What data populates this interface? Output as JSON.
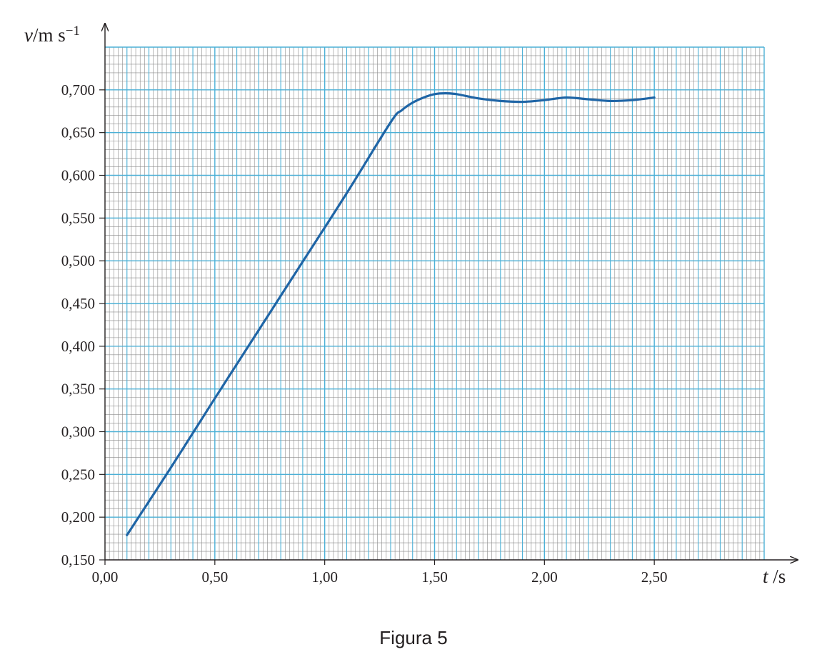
{
  "caption": "Figura 5",
  "chart_data": {
    "type": "line",
    "title": "",
    "xlabel": {
      "symbol": "t",
      "unit": " /s"
    },
    "ylabel": {
      "symbol": "v",
      "unit": "/m s",
      "exponent": "−1"
    },
    "xlim": [
      0.0,
      3.0
    ],
    "ylim": [
      0.15,
      0.75
    ],
    "x_ticks": [
      0.0,
      0.5,
      1.0,
      1.5,
      2.0,
      2.5
    ],
    "x_tick_labels": [
      "0,00",
      "0,50",
      "1,00",
      "1,50",
      "2,00",
      "2,50"
    ],
    "y_ticks": [
      0.15,
      0.2,
      0.25,
      0.3,
      0.35,
      0.4,
      0.45,
      0.5,
      0.55,
      0.6,
      0.65,
      0.7
    ],
    "y_tick_labels": [
      "0,150",
      "0,200",
      "0,250",
      "0,300",
      "0,350",
      "0,400",
      "0,450",
      "0,500",
      "0,550",
      "0,600",
      "0,650",
      "0,700"
    ],
    "grid": true,
    "line_color": "#1f65a6",
    "grid_major_color": "#4cb0d6",
    "grid_minor_color": "#8a8a8a",
    "series": [
      {
        "x": [
          0.1,
          0.3,
          0.5,
          0.7,
          0.9,
          1.1,
          1.3,
          1.35,
          1.4,
          1.45,
          1.5,
          1.55,
          1.6,
          1.7,
          1.8,
          1.9,
          2.0,
          2.1,
          2.2,
          2.3,
          2.4,
          2.5
        ],
        "y": [
          0.179,
          0.258,
          0.339,
          0.419,
          0.499,
          0.579,
          0.662,
          0.676,
          0.685,
          0.691,
          0.695,
          0.696,
          0.695,
          0.69,
          0.687,
          0.686,
          0.688,
          0.691,
          0.689,
          0.687,
          0.688,
          0.691
        ]
      }
    ]
  }
}
